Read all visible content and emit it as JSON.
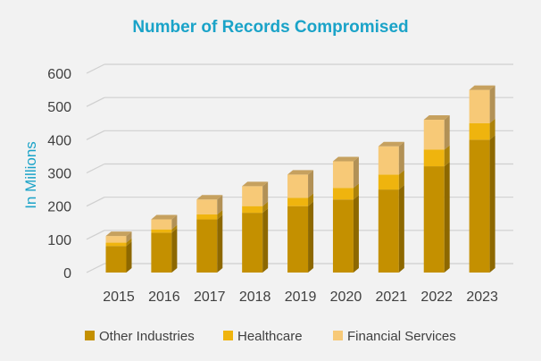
{
  "chart_data": {
    "type": "bar",
    "stacked": true,
    "three_d": true,
    "title": "Number of Records Compromised",
    "xlabel": "",
    "ylabel": "In Millions",
    "categories": [
      "2015",
      "2016",
      "2017",
      "2018",
      "2019",
      "2020",
      "2021",
      "2022",
      "2023"
    ],
    "ylim": [
      0,
      600
    ],
    "yticks": [
      "0",
      "100",
      "200",
      "300",
      "400",
      "500",
      "600"
    ],
    "grid": true,
    "legend_position": "bottom",
    "series": [
      {
        "name": "Other Industries",
        "color": "#c49000",
        "values": [
          80,
          120,
          160,
          180,
          200,
          220,
          250,
          320,
          400
        ]
      },
      {
        "name": "Healthcare",
        "color": "#efb40e",
        "values": [
          10,
          10,
          15,
          20,
          25,
          35,
          45,
          50,
          50
        ]
      },
      {
        "name": "Financial Services",
        "color": "#f7c977",
        "values": [
          20,
          30,
          45,
          60,
          70,
          80,
          85,
          90,
          100
        ]
      }
    ]
  }
}
